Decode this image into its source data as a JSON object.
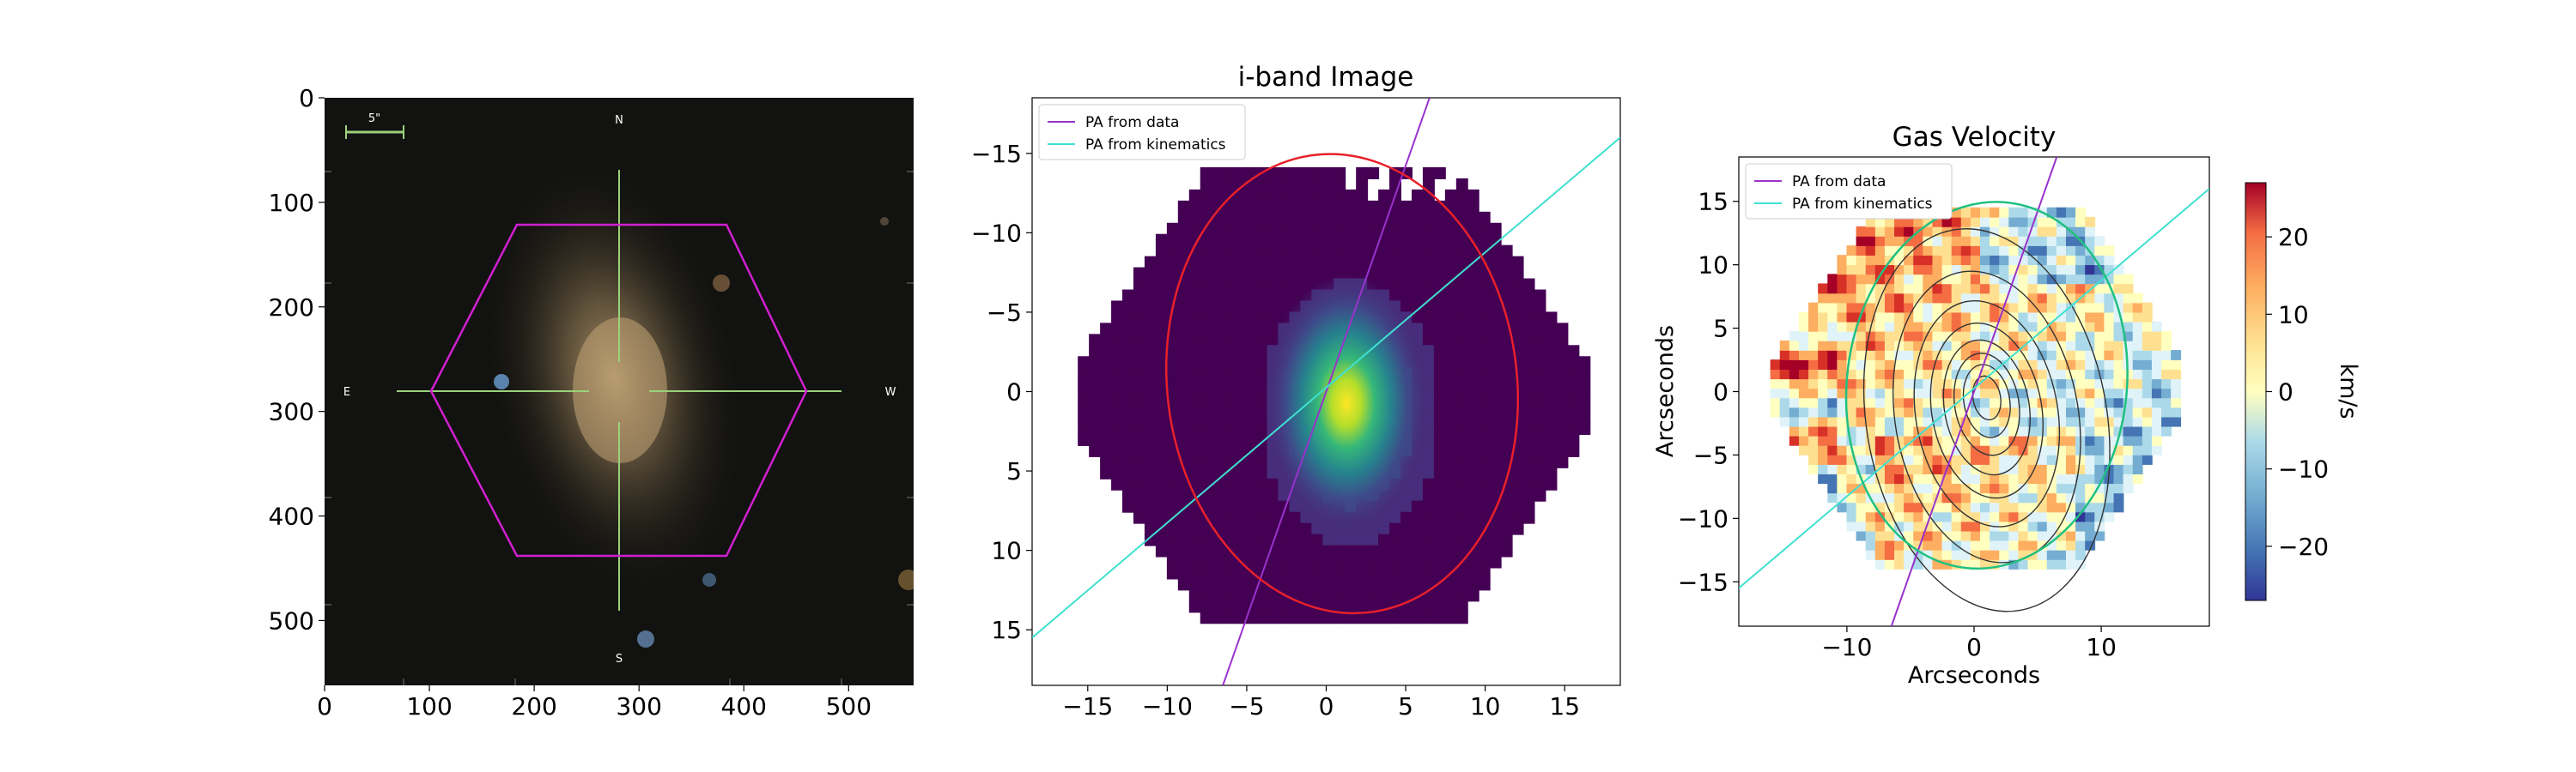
{
  "figure": {
    "panels": [
      "sdss-image",
      "i-band-image",
      "gas-velocity"
    ]
  },
  "chart_data": [
    {
      "type": "heatmap",
      "title": "",
      "xlabel": "",
      "ylabel": "",
      "xlim": [
        0,
        562
      ],
      "ylim": [
        562,
        0
      ],
      "xticks": [
        0,
        100,
        200,
        300,
        400,
        500
      ],
      "yticks": [
        0,
        100,
        200,
        300,
        400,
        500
      ],
      "overlay": {
        "scale_bar_label": "5\"",
        "compass": {
          "north": "N",
          "south": "S",
          "east": "E",
          "west": "W"
        },
        "hexagon_color": "#d020d0",
        "crosshair_color": "#9ad27a"
      }
    },
    {
      "type": "heatmap",
      "title": "i-band Image",
      "xlabel": "",
      "ylabel": "",
      "xlim": [
        -18.5,
        18.5
      ],
      "ylim": [
        18.5,
        -18.5
      ],
      "xticks": [
        -15,
        -10,
        -5,
        0,
        5,
        10,
        15
      ],
      "yticks": [
        -15,
        -10,
        -5,
        0,
        5,
        10,
        15
      ],
      "legend": {
        "location": "upper left",
        "entries": [
          {
            "label": "PA from data",
            "color": "#9932cc"
          },
          {
            "label": "PA from kinematics",
            "color": "#40e0d0"
          }
        ]
      },
      "lines": [
        {
          "name": "PA from data",
          "x": [
            -6.5,
            6.5
          ],
          "y": [
            18.5,
            -18.5
          ]
        },
        {
          "name": "PA from kinematics",
          "x": [
            -18.5,
            18.5
          ],
          "y": [
            15.5,
            -16.0
          ]
        }
      ],
      "ellipse": {
        "center": [
          1.0,
          -0.5
        ],
        "semi_axes": [
          11.0,
          14.5
        ],
        "angle_deg": -7,
        "color": "#e8202a"
      },
      "peak": {
        "x": 1.2,
        "y": 1.0
      },
      "colormap": "viridis"
    },
    {
      "type": "heatmap",
      "title": "Gas Velocity",
      "xlabel": "Arcseconds",
      "ylabel": "Arcseconds",
      "xlim": [
        -18.5,
        18.5
      ],
      "ylim": [
        -18.5,
        18.5
      ],
      "xticks": [
        -10,
        0,
        10
      ],
      "yticks": [
        -15,
        -10,
        -5,
        0,
        5,
        10,
        15
      ],
      "legend": {
        "location": "upper left",
        "entries": [
          {
            "label": "PA from data",
            "color": "#9932cc"
          },
          {
            "label": "PA from kinematics",
            "color": "#40e0d0"
          }
        ]
      },
      "lines": [
        {
          "name": "PA from data",
          "x": [
            -6.5,
            6.5
          ],
          "y": [
            -18.5,
            18.5
          ]
        },
        {
          "name": "PA from kinematics",
          "x": [
            -18.5,
            18.5
          ],
          "y": [
            -15.5,
            16.0
          ]
        }
      ],
      "ellipse": {
        "center": [
          1.0,
          0.5
        ],
        "semi_axes": [
          11.0,
          14.5
        ],
        "angle_deg": 7,
        "color": "#20c080"
      },
      "colorbar": {
        "label": "km/s",
        "range": [
          -27,
          27
        ],
        "ticks": [
          20,
          10,
          0,
          -10,
          -20
        ],
        "colormap": "RdYlBu_r"
      }
    }
  ]
}
